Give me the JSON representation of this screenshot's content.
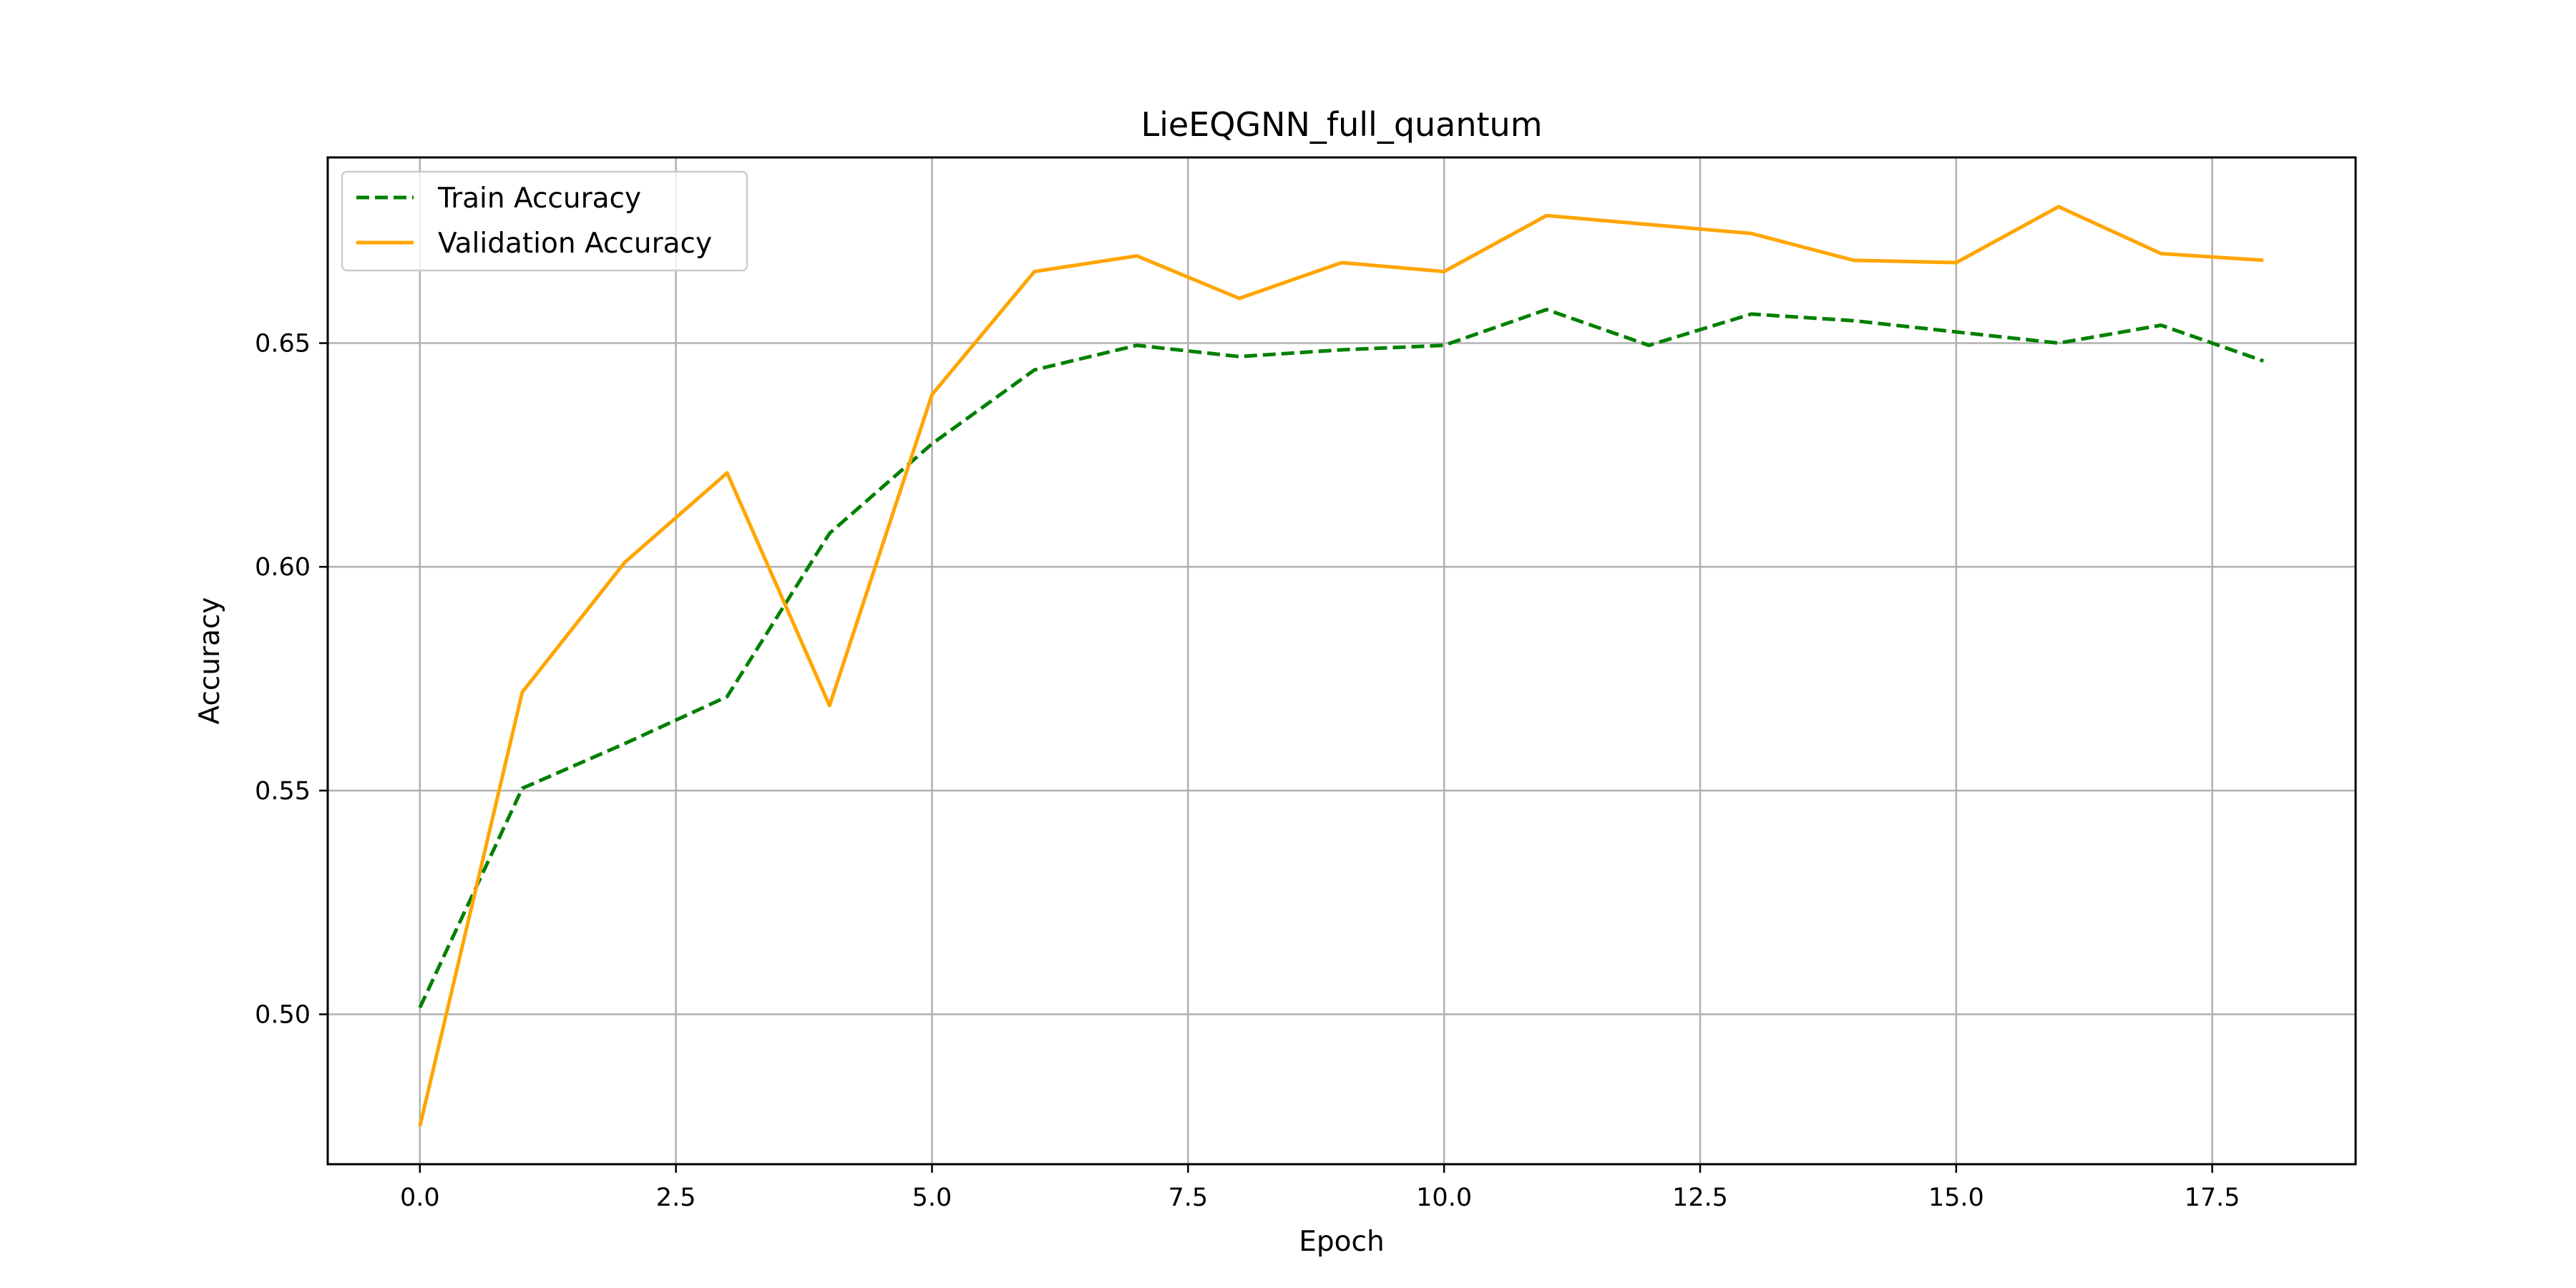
{
  "chart_data": {
    "type": "line",
    "title": "LieEQGNN_full_quantum",
    "xlabel": "Epoch",
    "ylabel": "Accuracy",
    "xlim": [
      -0.9,
      18.9
    ],
    "ylim": [
      0.4665,
      0.6915
    ],
    "xticks": [
      0.0,
      2.5,
      5.0,
      7.5,
      10.0,
      12.5,
      15.0,
      17.5
    ],
    "xtick_labels": [
      "0.0",
      "2.5",
      "5.0",
      "7.5",
      "10.0",
      "12.5",
      "15.0",
      "17.5"
    ],
    "yticks": [
      0.5,
      0.55,
      0.6,
      0.65
    ],
    "ytick_labels": [
      "0.50",
      "0.55",
      "0.60",
      "0.65"
    ],
    "grid": true,
    "legend_position": "upper-left",
    "x": [
      0,
      1,
      2,
      3,
      4,
      5,
      6,
      7,
      8,
      9,
      10,
      11,
      12,
      13,
      14,
      15,
      16,
      17,
      18
    ],
    "series": [
      {
        "name": "Train Accuracy",
        "color": "#008000",
        "style": "dashed",
        "values": [
          0.5015,
          0.5505,
          0.5605,
          0.571,
          0.6075,
          0.6275,
          0.644,
          0.6495,
          0.647,
          0.6485,
          0.6495,
          0.6575,
          0.6495,
          0.6565,
          0.655,
          0.6525,
          0.65,
          0.654,
          0.646
        ]
      },
      {
        "name": "Validation Accuracy",
        "color": "#FFA500",
        "style": "solid",
        "values": [
          0.475,
          0.572,
          0.601,
          0.621,
          0.569,
          0.6385,
          0.666,
          0.6695,
          0.66,
          0.668,
          0.666,
          0.6785,
          0.6765,
          0.6745,
          0.6685,
          0.668,
          0.6805,
          0.67,
          0.6685
        ]
      }
    ]
  }
}
